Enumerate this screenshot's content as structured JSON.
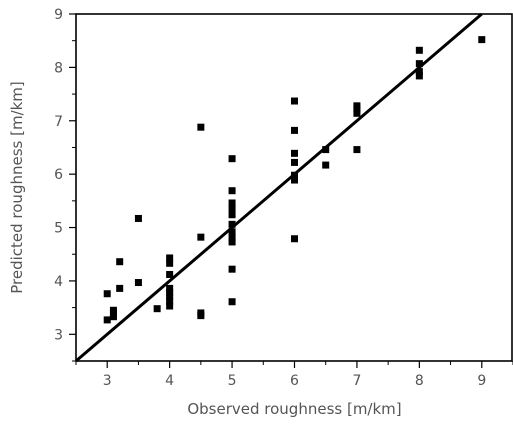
{
  "chart_data": {
    "type": "scatter",
    "xlabel": "Observed roughness [m/km]",
    "ylabel": "Predicted roughness [m/km]",
    "xlim": [
      2.5,
      9.5
    ],
    "ylim": [
      2.5,
      9
    ],
    "xticks": [
      3,
      4,
      5,
      6,
      7,
      8,
      9
    ],
    "yticks": [
      3,
      4,
      5,
      6,
      7,
      8,
      9
    ],
    "grid": false,
    "reference_line": {
      "type": "identity",
      "x": [
        2.5,
        9.5
      ],
      "y": [
        2.5,
        9.5
      ]
    },
    "series": [
      {
        "marker": "square",
        "points": [
          [
            3.0,
            3.27
          ],
          [
            3.0,
            3.76
          ],
          [
            3.1,
            3.33
          ],
          [
            3.1,
            3.4
          ],
          [
            3.1,
            3.45
          ],
          [
            3.2,
            3.86
          ],
          [
            3.2,
            4.36
          ],
          [
            3.5,
            3.97
          ],
          [
            3.5,
            5.17
          ],
          [
            3.8,
            3.48
          ],
          [
            4.0,
            3.53
          ],
          [
            4.0,
            3.62
          ],
          [
            4.0,
            3.7
          ],
          [
            4.0,
            3.78
          ],
          [
            4.0,
            3.86
          ],
          [
            4.0,
            4.12
          ],
          [
            4.0,
            4.33
          ],
          [
            4.0,
            4.43
          ],
          [
            4.5,
            3.35
          ],
          [
            4.5,
            3.4
          ],
          [
            4.5,
            4.82
          ],
          [
            4.5,
            6.88
          ],
          [
            5.0,
            3.61
          ],
          [
            5.0,
            4.22
          ],
          [
            5.0,
            4.73
          ],
          [
            5.0,
            4.81
          ],
          [
            5.0,
            4.92
          ],
          [
            5.0,
            5.06
          ],
          [
            5.0,
            5.24
          ],
          [
            5.0,
            5.36
          ],
          [
            5.0,
            5.46
          ],
          [
            5.0,
            5.69
          ],
          [
            5.0,
            6.29
          ],
          [
            6.0,
            4.79
          ],
          [
            6.0,
            5.89
          ],
          [
            6.0,
            5.98
          ],
          [
            6.0,
            6.22
          ],
          [
            6.0,
            6.39
          ],
          [
            6.0,
            6.82
          ],
          [
            6.0,
            7.37
          ],
          [
            6.5,
            6.17
          ],
          [
            6.5,
            6.46
          ],
          [
            7.0,
            6.46
          ],
          [
            7.0,
            7.14
          ],
          [
            7.0,
            7.22
          ],
          [
            7.0,
            7.28
          ],
          [
            8.0,
            7.84
          ],
          [
            8.0,
            7.92
          ],
          [
            8.0,
            8.07
          ],
          [
            8.0,
            8.32
          ],
          [
            9.0,
            8.52
          ]
        ]
      }
    ]
  }
}
